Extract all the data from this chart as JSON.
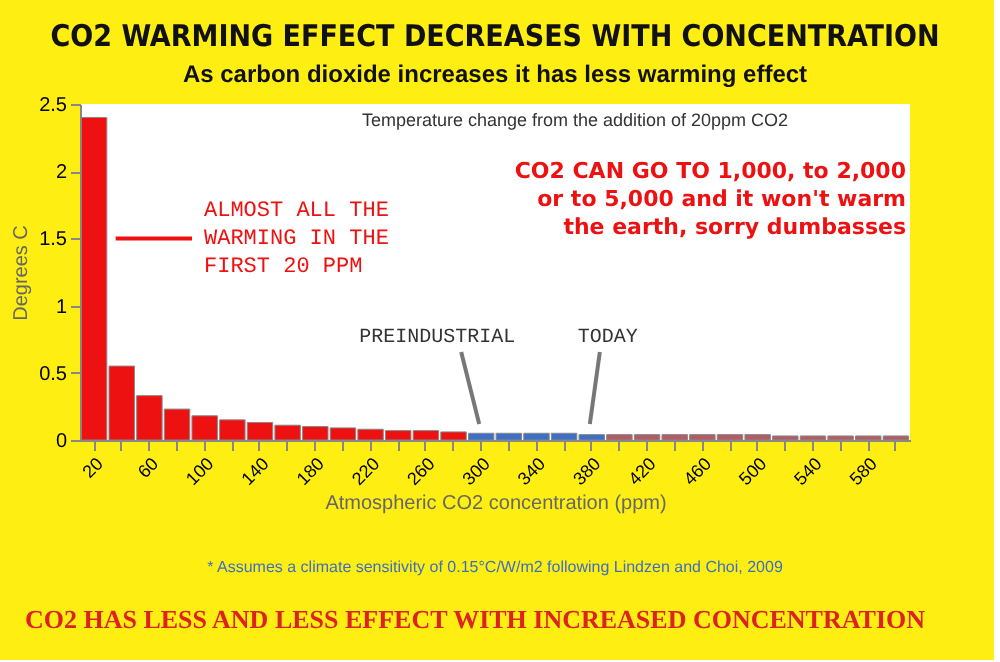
{
  "chart_data": {
    "type": "bar",
    "title": "CO2 WARMING EFFECT DECREASES WITH CONCENTRATION",
    "subtitle": "As carbon dioxide increases it has less warming effect",
    "xlabel": "Atmospheric CO2 concentration (ppm)",
    "ylabel": "Degrees C",
    "categories": [
      "20",
      null,
      "60",
      null,
      "100",
      null,
      "140",
      null,
      "180",
      null,
      "220",
      null,
      "260",
      null,
      "300",
      null,
      "340",
      null,
      "380",
      null,
      "420",
      null,
      "460",
      null,
      "500",
      null,
      "540",
      null,
      "580",
      null
    ],
    "values": [
      2.4,
      0.55,
      0.33,
      0.23,
      0.18,
      0.15,
      0.13,
      0.11,
      0.1,
      0.09,
      0.08,
      0.07,
      0.07,
      0.06,
      0.05,
      0.05,
      0.05,
      0.05,
      0.04,
      0.04,
      0.04,
      0.04,
      0.04,
      0.04,
      0.04,
      0.03,
      0.03,
      0.03,
      0.03,
      0.03
    ],
    "colors": [
      "#ee1111",
      "#ee1111",
      "#ee1111",
      "#ee1111",
      "#ee1111",
      "#ee1111",
      "#ee1111",
      "#ee1111",
      "#ee1111",
      "#ee1111",
      "#ee1111",
      "#ee1111",
      "#ee1111",
      "#ee1111",
      "#3d6fc4",
      "#3d6fc4",
      "#3d6fc4",
      "#3d6fc4",
      "#3d6fc4",
      "#b35c64",
      "#b35c64",
      "#b35c64",
      "#b35c64",
      "#b35c64",
      "#b35c64",
      "#b35c64",
      "#b35c64",
      "#b35c64",
      "#b35c64",
      "#b35c64"
    ],
    "ylim": [
      0,
      2.5
    ],
    "yticks": [
      0,
      0.5,
      1,
      1.5,
      2,
      2.5
    ],
    "grid": false,
    "annotations": [
      "Temperature change from the addition of 20ppm CO2",
      "ALMOST ALL THE\nWARMING IN THE\nFIRST 20 PPM",
      "CO2 CAN GO TO 1,000, to 2,000\nor to 5,000 and it won't warm\nthe earth, sorry dumbasses",
      "PREINDUSTRIAL",
      "TODAY",
      "* Assumes a climate sensitivity of 0.15°C/W/m2 following Lindzen and Choi, 2009",
      "CO2 HAS LESS AND LESS EFFECT WITH INCREASED CONCENTRATION"
    ]
  }
}
